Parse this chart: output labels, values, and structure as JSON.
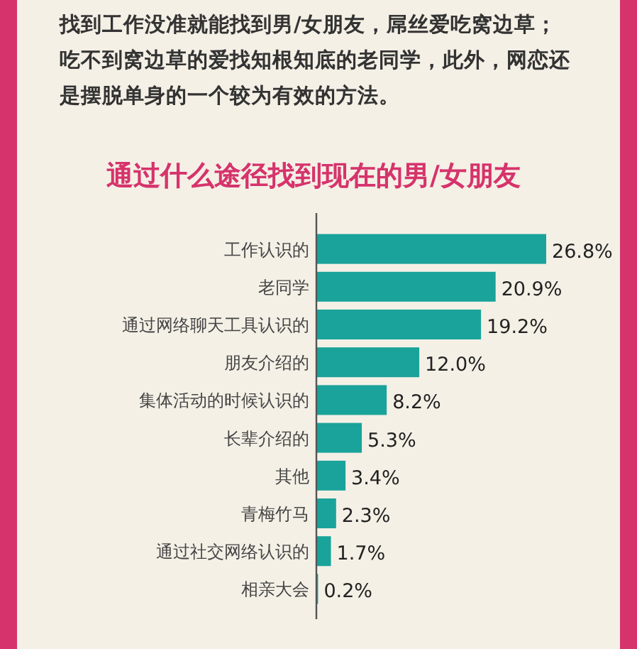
{
  "chart_data": {
    "type": "bar",
    "orientation": "horizontal",
    "title": "通过什么途径找到现在的男/女朋友",
    "annotations": [
      "找到工作没准就能找到男/女朋友，屌丝爱吃窝边草；吃不到窝边草的爱找知根知底的老同学，此外，网恋还是摆脱单身的一个较为有效的方法。"
    ],
    "categories": [
      "工作认识的",
      "老同学",
      "通过网络聊天工具认识的",
      "朋友介绍的",
      "集体活动的时候认识的",
      "长辈介绍的",
      "其他",
      "青梅竹马",
      "通过社交网络认识的",
      "相亲大会"
    ],
    "values": [
      26.8,
      20.9,
      19.2,
      12.0,
      8.2,
      5.3,
      3.4,
      2.3,
      1.7,
      0.2
    ],
    "value_labels": [
      "26.8%",
      "20.9%",
      "19.2%",
      "12.0%",
      "8.2%",
      "5.3%",
      "3.4%",
      "2.3%",
      "1.7%",
      "0.2%"
    ],
    "color": "#1aa39a"
  }
}
